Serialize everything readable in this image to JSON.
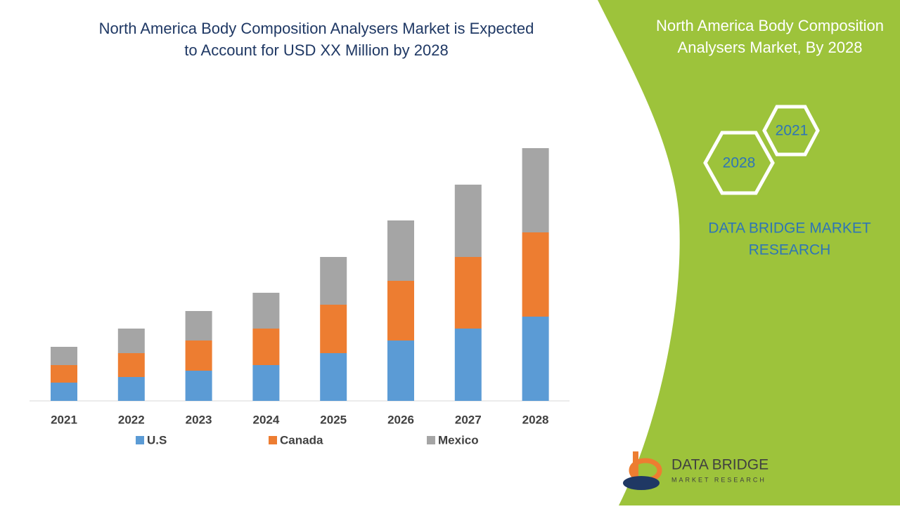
{
  "chart_data": {
    "type": "stacked-bar",
    "title": [
      "North America Body Composition Analysers Market is Expected",
      "to Account for USD XX Million by 2028"
    ],
    "categories": [
      "2021",
      "2022",
      "2023",
      "2024",
      "2025",
      "2026",
      "2027",
      "2028"
    ],
    "series": [
      {
        "name": "U.S",
        "color": "#5b9bd5",
        "values": [
          26,
          34,
          43,
          51,
          68,
          86,
          103,
          120
        ]
      },
      {
        "name": "Canada",
        "color": "#ed7d31",
        "values": [
          25,
          34,
          43,
          52,
          69,
          85,
          102,
          120
        ]
      },
      {
        "name": "Mexico",
        "color": "#a5a5a5",
        "values": [
          26,
          35,
          42,
          51,
          68,
          86,
          103,
          120
        ]
      }
    ]
  },
  "panel": {
    "title": [
      "North America Body Composition",
      "Analysers Market, By 2028"
    ],
    "hexagons": [
      "2021",
      "2028"
    ],
    "brand": [
      "DATA BRIDGE MARKET",
      "RESEARCH"
    ],
    "logo": [
      "DATA BRIDGE",
      "MARKET RESEARCH"
    ]
  }
}
